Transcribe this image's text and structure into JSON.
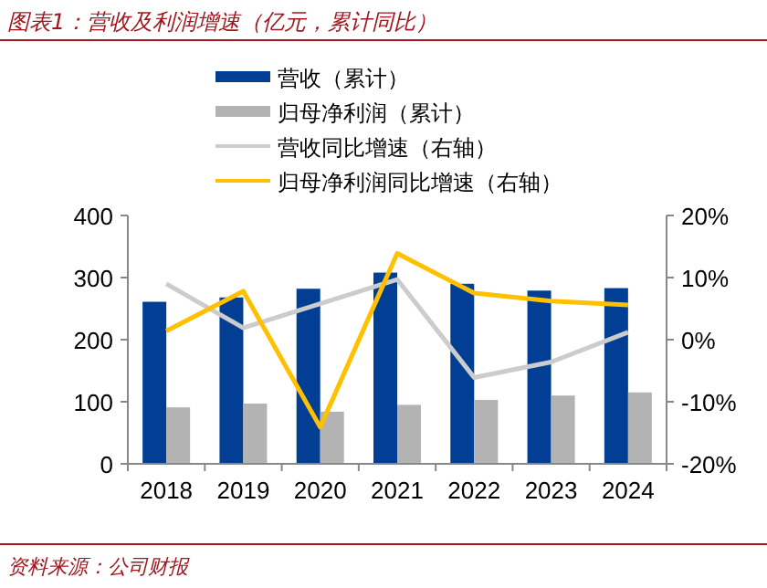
{
  "chart_data": {
    "type": "bar",
    "title": "图表1：营收及利润增速（亿元，累计同比）",
    "annotations": [
      "资料来源：公司财报"
    ],
    "categories": [
      "2018",
      "2019",
      "2020",
      "2021",
      "2022",
      "2023",
      "2024"
    ],
    "series": [
      {
        "name": "营收（累计）",
        "color": "#023f94",
        "values": [
          261,
          268,
          282,
          308,
          290,
          279,
          283
        ]
      },
      {
        "name": "归母净利润（累计）",
        "color": "#b3b3b3",
        "values": [
          91,
          97,
          84,
          95,
          103,
          110,
          115
        ]
      },
      {
        "name": "营收同比增速（右轴）",
        "type": "line",
        "axis": "y2",
        "color": "#cccccc",
        "values": [
          9.0,
          1.9,
          5.8,
          9.7,
          -6.1,
          -3.6,
          1.2
        ]
      },
      {
        "name": "归母净利润同比增速（右轴）",
        "type": "line",
        "axis": "y2",
        "color": "#ffc000",
        "values": [
          1.4,
          7.8,
          -14.1,
          13.9,
          7.5,
          6.2,
          5.6
        ]
      }
    ],
    "ylim": [
      0,
      400
    ],
    "yticks": [
      0,
      100,
      200,
      300,
      400
    ],
    "y2lim": [
      -20,
      20
    ],
    "y2ticks": [
      {
        "value": -20,
        "label": "-20%"
      },
      {
        "value": -10,
        "label": "-10%"
      },
      {
        "value": 0,
        "label": "0%"
      },
      {
        "value": 10,
        "label": "10%"
      },
      {
        "value": 20,
        "label": "20%"
      }
    ],
    "grid": false,
    "legend": "top right"
  }
}
